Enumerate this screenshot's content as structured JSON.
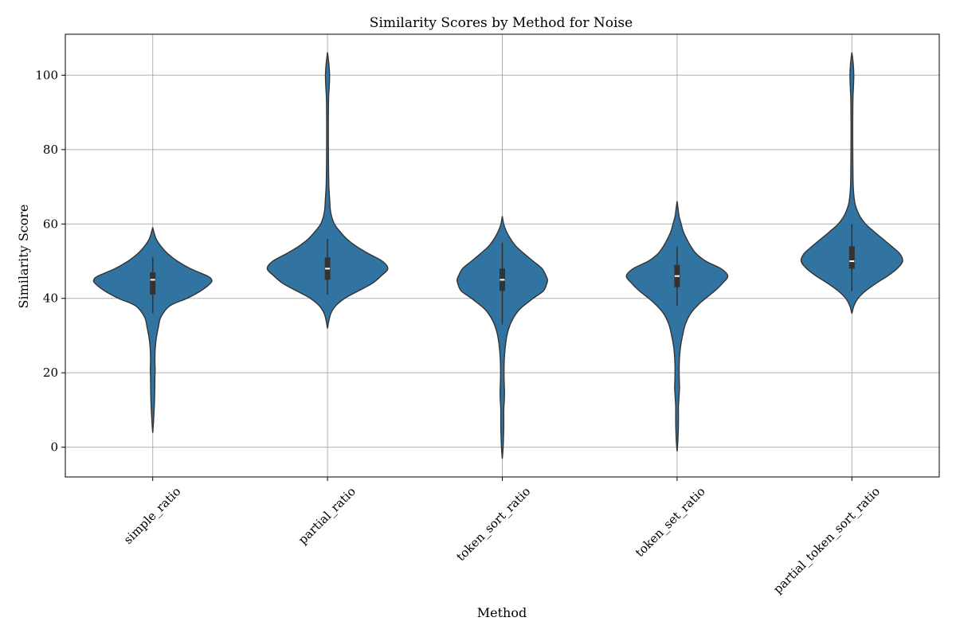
{
  "colors": {
    "violin_fill": "#3274a1",
    "violin_stroke": "#333333",
    "box": "#333333",
    "median": "#ffffff",
    "grid": "#b0b0b0",
    "background": "#ffffff"
  },
  "chart_data": {
    "type": "violin",
    "title": "Similarity Scores by Method for Noise",
    "xlabel": "Method",
    "ylabel": "Similarity Score",
    "ylim": [
      -8,
      111
    ],
    "yticks": [
      0,
      20,
      40,
      60,
      80,
      100
    ],
    "grid": true,
    "legend": "none",
    "categories": [
      "simple_ratio",
      "partial_ratio",
      "token_sort_ratio",
      "token_set_ratio",
      "partial_token_sort_ratio"
    ],
    "series": [
      {
        "category": "simple_ratio",
        "min": 4,
        "max": 59,
        "q1": 41,
        "median": 45,
        "q3": 47,
        "whisker_low": 36,
        "whisker_high": 51,
        "density": [
          [
            4,
            0.1
          ],
          [
            8,
            1.5
          ],
          [
            12,
            2.5
          ],
          [
            16,
            3
          ],
          [
            19,
            3.2
          ],
          [
            21,
            3.5
          ],
          [
            23,
            3.2
          ],
          [
            26,
            3.5
          ],
          [
            29,
            5
          ],
          [
            32,
            8
          ],
          [
            35,
            12
          ],
          [
            38,
            25
          ],
          [
            40,
            50
          ],
          [
            42,
            70
          ],
          [
            44,
            84
          ],
          [
            45,
            86
          ],
          [
            46,
            80
          ],
          [
            48,
            55
          ],
          [
            50,
            36
          ],
          [
            52,
            22
          ],
          [
            54,
            12
          ],
          [
            56,
            5
          ],
          [
            58,
            1.5
          ],
          [
            59,
            0.1
          ]
        ]
      },
      {
        "category": "partial_ratio",
        "min": 32,
        "max": 106,
        "q1": 45,
        "median": 48,
        "q3": 51,
        "whisker_low": 41,
        "whisker_high": 56,
        "density": [
          [
            32,
            0.1
          ],
          [
            34,
            2
          ],
          [
            36,
            5
          ],
          [
            38,
            12
          ],
          [
            40,
            25
          ],
          [
            42,
            45
          ],
          [
            44,
            65
          ],
          [
            46,
            78
          ],
          [
            48,
            88
          ],
          [
            50,
            80
          ],
          [
            52,
            60
          ],
          [
            54,
            42
          ],
          [
            56,
            28
          ],
          [
            58,
            18
          ],
          [
            60,
            10
          ],
          [
            62,
            6
          ],
          [
            64,
            4
          ],
          [
            67,
            3
          ],
          [
            70,
            2
          ],
          [
            75,
            1.5
          ],
          [
            80,
            1.3
          ],
          [
            85,
            1.2
          ],
          [
            90,
            1.3
          ],
          [
            94,
            1.6
          ],
          [
            97,
            2.5
          ],
          [
            100,
            3
          ],
          [
            103,
            2
          ],
          [
            106,
            0.1
          ]
        ]
      },
      {
        "category": "token_sort_ratio",
        "min": -3,
        "max": 62,
        "q1": 42,
        "median": 45,
        "q3": 48,
        "whisker_low": 33,
        "whisker_high": 55,
        "density": [
          [
            -3,
            0.1
          ],
          [
            0,
            1.2
          ],
          [
            3,
            1.8
          ],
          [
            6,
            2.2
          ],
          [
            10,
            2.2
          ],
          [
            13,
            3
          ],
          [
            15,
            3.2
          ],
          [
            17,
            2.8
          ],
          [
            20,
            2.5
          ],
          [
            24,
            3
          ],
          [
            28,
            5
          ],
          [
            31,
            8
          ],
          [
            34,
            14
          ],
          [
            37,
            25
          ],
          [
            40,
            45
          ],
          [
            42,
            60
          ],
          [
            44,
            65
          ],
          [
            45,
            66
          ],
          [
            46,
            64
          ],
          [
            48,
            58
          ],
          [
            50,
            45
          ],
          [
            52,
            32
          ],
          [
            54,
            20
          ],
          [
            56,
            12
          ],
          [
            58,
            6
          ],
          [
            60,
            2
          ],
          [
            62,
            0.1
          ]
        ]
      },
      {
        "category": "token_set_ratio",
        "min": -1,
        "max": 66,
        "q1": 43,
        "median": 46,
        "q3": 49,
        "whisker_low": 38,
        "whisker_high": 54,
        "density": [
          [
            -1,
            0.1
          ],
          [
            2,
            1.2
          ],
          [
            5,
            1.8
          ],
          [
            8,
            2
          ],
          [
            11,
            2
          ],
          [
            14,
            3
          ],
          [
            16,
            3.5
          ],
          [
            18,
            3.2
          ],
          [
            21,
            3
          ],
          [
            24,
            3.5
          ],
          [
            27,
            5
          ],
          [
            30,
            8
          ],
          [
            33,
            12
          ],
          [
            36,
            20
          ],
          [
            39,
            35
          ],
          [
            42,
            55
          ],
          [
            44,
            66
          ],
          [
            46,
            74
          ],
          [
            48,
            64
          ],
          [
            50,
            42
          ],
          [
            52,
            28
          ],
          [
            54,
            20
          ],
          [
            56,
            14
          ],
          [
            58,
            9
          ],
          [
            60,
            6
          ],
          [
            62,
            3
          ],
          [
            64,
            1.5
          ],
          [
            66,
            0.1
          ]
        ]
      },
      {
        "category": "partial_token_sort_ratio",
        "min": 36,
        "max": 106,
        "q1": 48,
        "median": 50,
        "q3": 54,
        "whisker_low": 42,
        "whisker_high": 60,
        "density": [
          [
            36,
            0.1
          ],
          [
            38,
            3
          ],
          [
            40,
            9
          ],
          [
            42,
            20
          ],
          [
            44,
            35
          ],
          [
            46,
            52
          ],
          [
            48,
            66
          ],
          [
            50,
            74
          ],
          [
            52,
            70
          ],
          [
            54,
            58
          ],
          [
            56,
            45
          ],
          [
            58,
            32
          ],
          [
            60,
            20
          ],
          [
            62,
            12
          ],
          [
            64,
            7
          ],
          [
            66,
            4
          ],
          [
            70,
            2
          ],
          [
            75,
            1.5
          ],
          [
            80,
            1.3
          ],
          [
            85,
            1.2
          ],
          [
            90,
            1.3
          ],
          [
            94,
            1.6
          ],
          [
            97,
            2.3
          ],
          [
            100,
            2.8
          ],
          [
            103,
            2
          ],
          [
            106,
            0.1
          ]
        ]
      }
    ]
  }
}
